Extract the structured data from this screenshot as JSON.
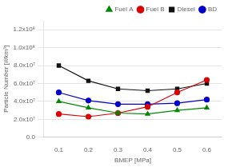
{
  "chart_data": {
    "type": "line",
    "x": [
      0.1,
      0.2,
      0.3,
      0.4,
      0.5,
      0.6
    ],
    "series": [
      {
        "name": "Fuel A",
        "color": "#008800",
        "marker": "triangle",
        "values": [
          40000000.0,
          33000000.0,
          27000000.0,
          26000000.0,
          30000000.0,
          33000000.0
        ]
      },
      {
        "name": "Fuel B",
        "color": "#dd0000",
        "marker": "circle",
        "values": [
          26000000.0,
          23000000.0,
          27000000.0,
          34000000.0,
          50000000.0,
          64000000.0
        ]
      },
      {
        "name": "Diesel",
        "color": "#111111",
        "marker": "square",
        "values": [
          80000000.0,
          63000000.0,
          54000000.0,
          52000000.0,
          54000000.0,
          60000000.0
        ]
      },
      {
        "name": "BD",
        "color": "#0000cc",
        "marker": "circle",
        "values": [
          50000000.0,
          41000000.0,
          37000000.0,
          37000000.0,
          38000000.0,
          42000000.0
        ]
      }
    ],
    "x_label": "BMEP [MPa]",
    "y_label": "Particle Number [#/km³]",
    "xlim": [
      0.05,
      0.65
    ],
    "xticks": [
      0.1,
      0.2,
      0.3,
      0.4,
      0.5,
      0.6
    ],
    "ylim": [
      0,
      130000000.0
    ],
    "yticks": [
      {
        "value": 0,
        "label": "0.0"
      },
      {
        "value": 20000000.0,
        "label": "2.0x10⁷"
      },
      {
        "value": 40000000.0,
        "label": "4.0x10⁷"
      },
      {
        "value": 60000000.0,
        "label": "6.0x10⁷"
      },
      {
        "value": 80000000.0,
        "label": "8.0x10⁷"
      },
      {
        "value": 100000000.0,
        "label": "1.0x10⁸"
      },
      {
        "value": 120000000.0,
        "label": "1.2x10⁸"
      }
    ],
    "grid": "y",
    "legend": "upper right"
  }
}
